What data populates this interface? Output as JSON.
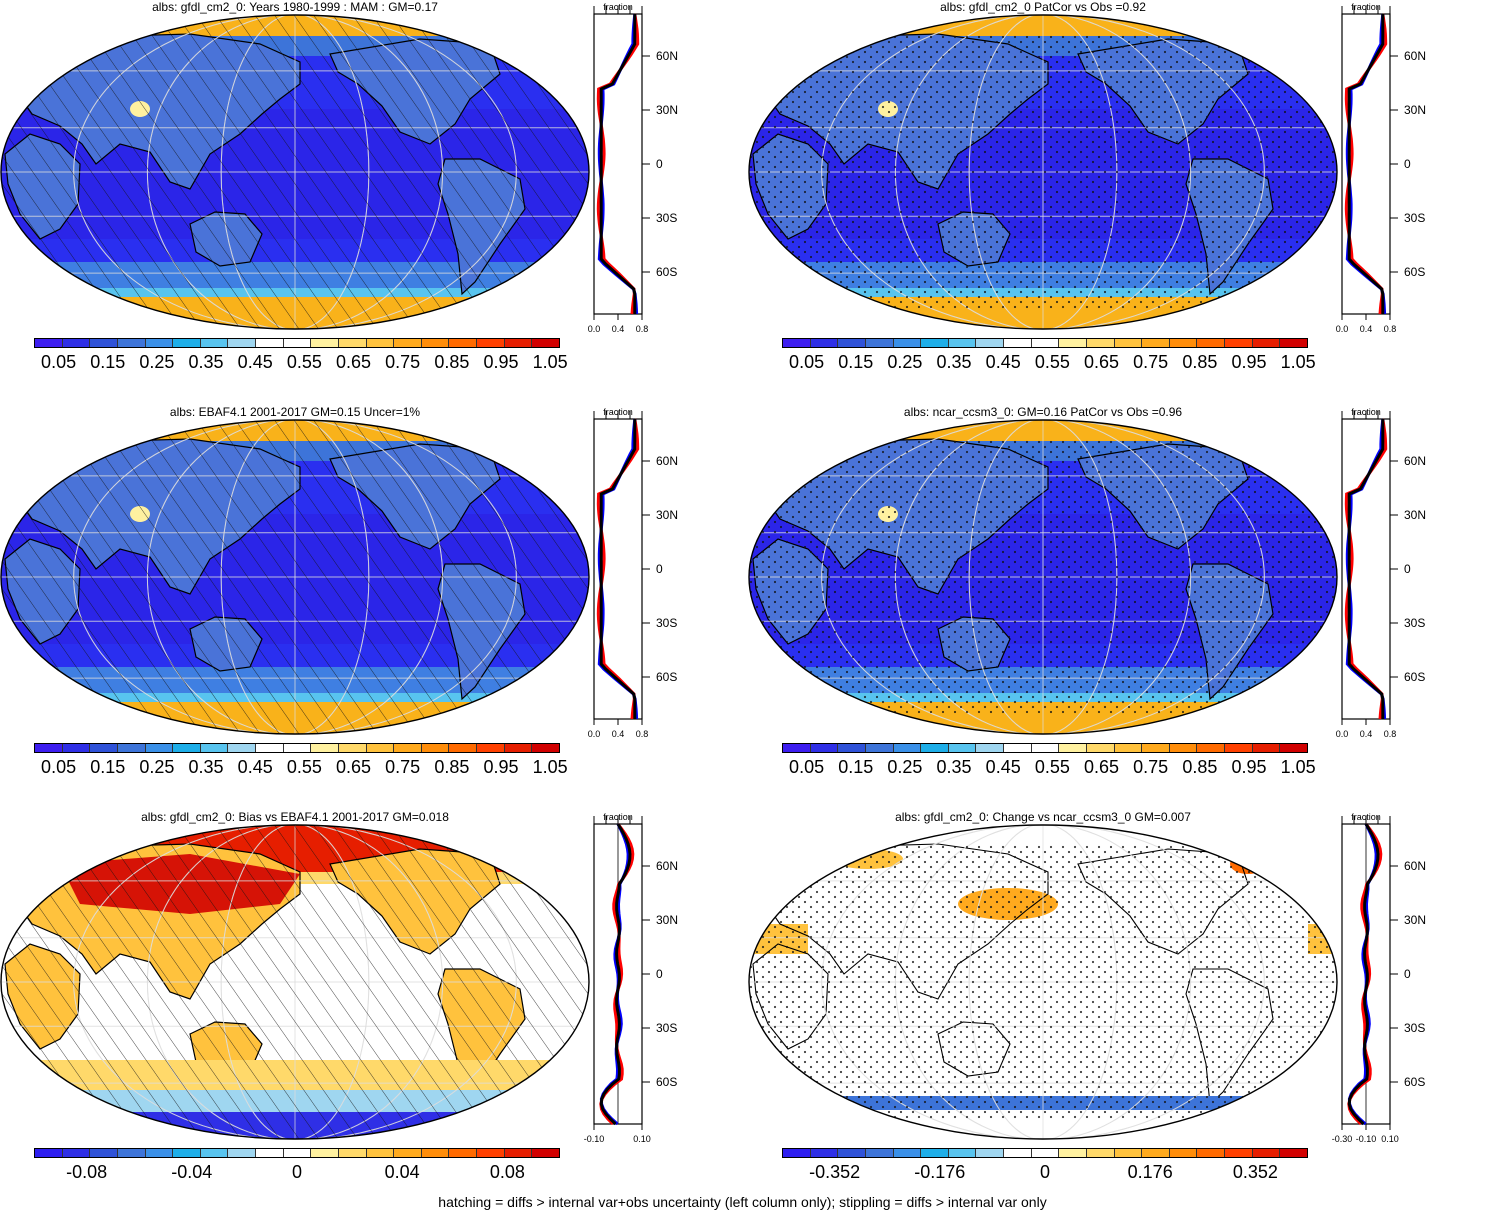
{
  "footer": "hatching = diffs > internal var+obs uncertainty (left column only); stippling = diffs > internal var only",
  "lat_ticks": [
    "60N",
    "30N",
    "0",
    "30S",
    "60S"
  ],
  "zonal_title": "fraction",
  "colors": {
    "line_model": "#0000ff",
    "line_obs": "#ff0000",
    "line_mean": "#000000",
    "ocean_low": "#2a2ff0",
    "land_mid": "#4a73d8",
    "ice_high": "#f9b21a"
  },
  "palette_abs": [
    "#3d1ef0",
    "#2f2fe6",
    "#2f52d8",
    "#3d74d9",
    "#3a90e8",
    "#1eaee8",
    "#58c4ef",
    "#9fd6f0",
    "#ffffff",
    "#ffffff",
    "#fff1a0",
    "#ffd96a",
    "#ffc23d",
    "#ffaa1e",
    "#ff8d0a",
    "#ff6a00",
    "#ff4000",
    "#e61e00",
    "#d10000"
  ],
  "palette_diff": [
    "#2d1ef0",
    "#2f2fe6",
    "#2f52d8",
    "#3d74d9",
    "#3a90e8",
    "#1eaee8",
    "#58c4ef",
    "#9fd6f0",
    "#ffffff",
    "#ffffff",
    "#fff1a0",
    "#ffd96a",
    "#ffc23d",
    "#ffaa1e",
    "#ff8d0a",
    "#ff6a00",
    "#ff4000",
    "#e61e00",
    "#d10000"
  ],
  "panels": [
    {
      "title": "albs: gfdl_cm2_0: Years 1980-1999 : MAM : GM=0.17",
      "colorbar_labels": [
        "0.05",
        "0.15",
        "0.25",
        "0.35",
        "0.45",
        "0.55",
        "0.65",
        "0.75",
        "0.85",
        "0.95",
        "1.05"
      ],
      "zonal_xticks": [
        "0.0",
        "0.4",
        "0.8"
      ],
      "hatched": true,
      "stippled": false,
      "kind": "abs"
    },
    {
      "title": "albs: gfdl_cm2_0 PatCor vs Obs =0.92",
      "colorbar_labels": [
        "0.05",
        "0.15",
        "0.25",
        "0.35",
        "0.45",
        "0.55",
        "0.65",
        "0.75",
        "0.85",
        "0.95",
        "1.05"
      ],
      "zonal_xticks": [
        "0.0",
        "0.4",
        "0.8"
      ],
      "hatched": false,
      "stippled": true,
      "kind": "abs"
    },
    {
      "title": "albs: EBAF4.1 2001-2017 GM=0.15 Uncer=1%",
      "colorbar_labels": [
        "0.05",
        "0.15",
        "0.25",
        "0.35",
        "0.45",
        "0.55",
        "0.65",
        "0.75",
        "0.85",
        "0.95",
        "1.05"
      ],
      "zonal_xticks": [
        "0.0",
        "0.4",
        "0.8"
      ],
      "hatched": true,
      "stippled": false,
      "kind": "abs"
    },
    {
      "title": "albs: ncar_ccsm3_0: GM=0.16 PatCor vs Obs =0.96",
      "colorbar_labels": [
        "0.05",
        "0.15",
        "0.25",
        "0.35",
        "0.45",
        "0.55",
        "0.65",
        "0.75",
        "0.85",
        "0.95",
        "1.05"
      ],
      "zonal_xticks": [
        "0.0",
        "0.4",
        "0.8"
      ],
      "hatched": false,
      "stippled": true,
      "kind": "abs"
    },
    {
      "title": "albs: gfdl_cm2_0: Bias vs EBAF4.1 2001-2017 GM=0.018",
      "colorbar_labels": [
        "-0.08",
        "-0.04",
        "0",
        "0.04",
        "0.08"
      ],
      "zonal_xticks": [
        "-0.10",
        "0.10"
      ],
      "hatched": true,
      "stippled": false,
      "kind": "bias"
    },
    {
      "title": "albs: gfdl_cm2_0: Change vs ncar_ccsm3_0 GM=0.007",
      "colorbar_labels": [
        "-0.352",
        "-0.176",
        "0",
        "0.176",
        "0.352"
      ],
      "zonal_xticks": [
        "-0.30",
        "-0.10",
        "0.10"
      ],
      "hatched": false,
      "stippled": true,
      "kind": "change"
    }
  ]
}
